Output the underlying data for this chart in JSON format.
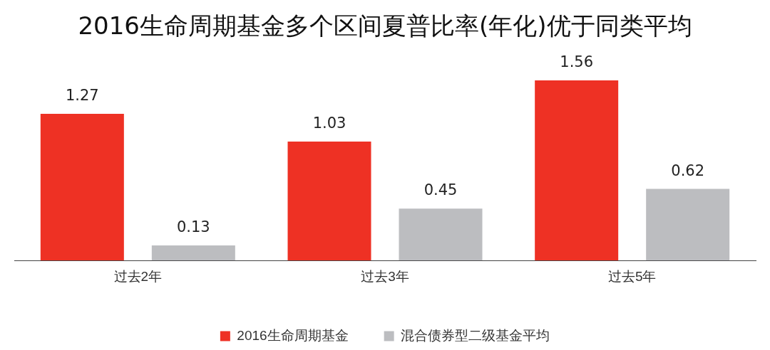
{
  "chart_data": {
    "type": "bar",
    "title": "2016生命周期基金多个区间夏普比率(年化)优于同类平均",
    "categories": [
      "过去2年",
      "过去3年",
      "过去5年"
    ],
    "series": [
      {
        "name": "2016生命周期基金",
        "color": "#ee3124",
        "values": [
          1.27,
          1.03,
          1.56
        ]
      },
      {
        "name": "混合债券型二级基金平均",
        "color": "#bcbdc0",
        "values": [
          0.13,
          0.45,
          0.62
        ]
      }
    ],
    "data_labels": true,
    "legend": "bottom",
    "grid": false,
    "tick_labels": "x"
  }
}
